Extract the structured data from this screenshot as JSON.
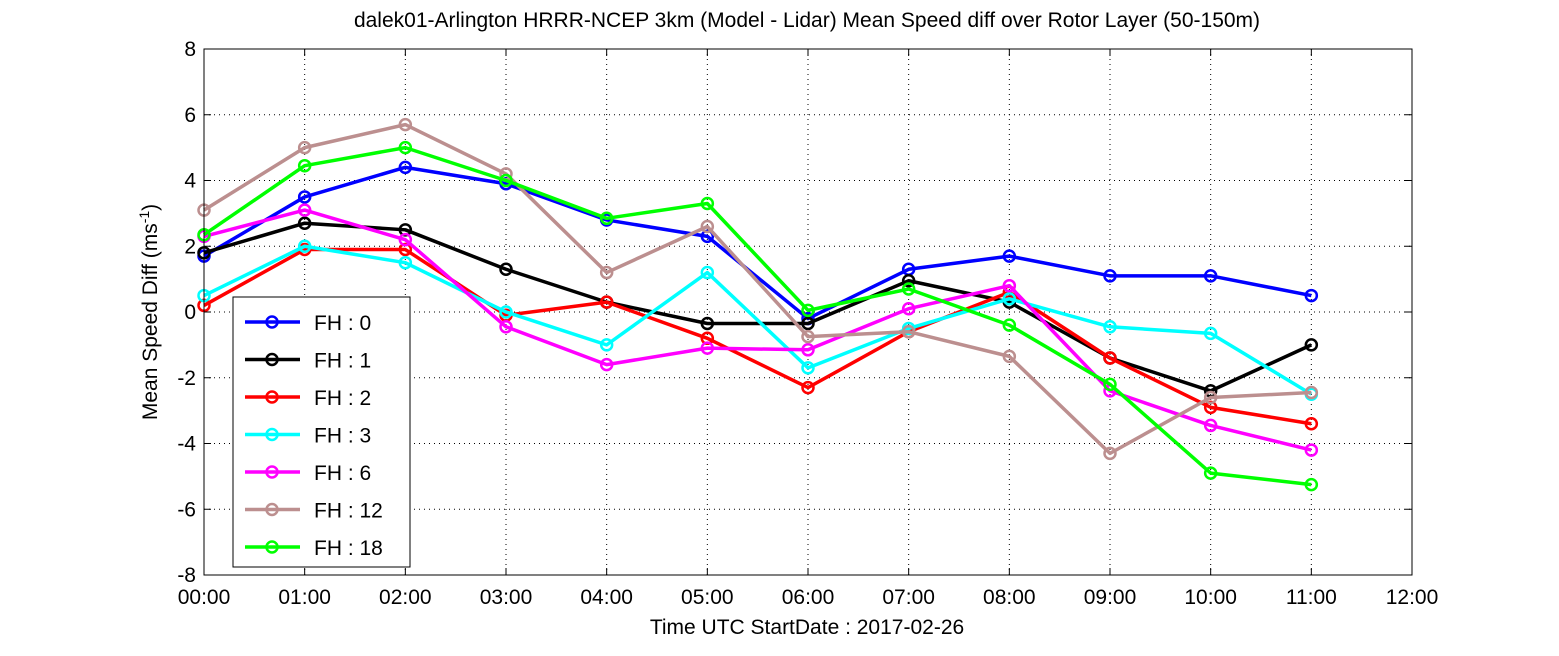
{
  "chart_data": {
    "type": "line",
    "title": "dalek01-Arlington HRRR-NCEP 3km (Model - Lidar) Mean Speed diff over Rotor Layer (50-150m)",
    "xlabel": "Time UTC    StartDate : 2017-02-26",
    "ylabel_main": "Mean Speed Diff (ms",
    "ylabel_sup": "-1",
    "ylabel_end": ")",
    "xlim": [
      0,
      12
    ],
    "ylim": [
      -8,
      8
    ],
    "grid": true,
    "legend_position": "lower-left",
    "x_ticks": [
      0,
      1,
      2,
      3,
      4,
      5,
      6,
      7,
      8,
      9,
      10,
      11,
      12
    ],
    "x_tick_labels": [
      "00:00",
      "01:00",
      "02:00",
      "03:00",
      "04:00",
      "05:00",
      "06:00",
      "07:00",
      "08:00",
      "09:00",
      "10:00",
      "11:00",
      "12:00"
    ],
    "y_ticks": [
      -8,
      -6,
      -4,
      -2,
      0,
      2,
      4,
      6,
      8
    ],
    "y_tick_labels": [
      "-8",
      "-6",
      "-4",
      "-2",
      "0",
      "2",
      "4",
      "6",
      "8"
    ],
    "x": [
      0,
      1,
      2,
      3,
      4,
      5,
      6,
      7,
      8,
      9,
      10,
      11
    ],
    "series": [
      {
        "name": "FH : 0",
        "color": "#0000ff",
        "values": [
          1.7,
          3.5,
          4.4,
          3.9,
          2.8,
          2.3,
          -0.2,
          1.3,
          1.7,
          1.1,
          1.1,
          0.5
        ]
      },
      {
        "name": "FH : 1",
        "color": "#000000",
        "values": [
          1.8,
          2.7,
          2.5,
          1.3,
          0.3,
          -0.35,
          -0.35,
          0.95,
          0.3,
          -1.4,
          -2.4,
          -1.0
        ]
      },
      {
        "name": "FH : 2",
        "color": "#ff0000",
        "values": [
          0.2,
          1.9,
          1.9,
          -0.1,
          0.3,
          -0.8,
          -2.3,
          -0.6,
          0.6,
          -1.4,
          -2.9,
          -3.4
        ]
      },
      {
        "name": "FH : 3",
        "color": "#00ffff",
        "values": [
          0.5,
          2.0,
          1.5,
          0.0,
          -1.0,
          1.2,
          -1.7,
          -0.5,
          0.4,
          -0.45,
          -0.65,
          -2.5
        ]
      },
      {
        "name": "FH : 6",
        "color": "#ff00ff",
        "values": [
          2.3,
          3.1,
          2.2,
          -0.45,
          -1.6,
          -1.1,
          -1.15,
          0.1,
          0.8,
          -2.4,
          -3.45,
          -4.2
        ]
      },
      {
        "name": "FH : 12",
        "color": "#bc8f8f",
        "values": [
          3.1,
          5.0,
          5.7,
          4.2,
          1.2,
          2.6,
          -0.75,
          -0.6,
          -1.35,
          -4.3,
          -2.6,
          -2.45
        ]
      },
      {
        "name": "FH : 18",
        "color": "#00ff00",
        "values": [
          2.35,
          4.45,
          5.0,
          4.0,
          2.85,
          3.3,
          0.05,
          0.7,
          -0.4,
          -2.2,
          -4.9,
          -5.25
        ]
      }
    ]
  }
}
